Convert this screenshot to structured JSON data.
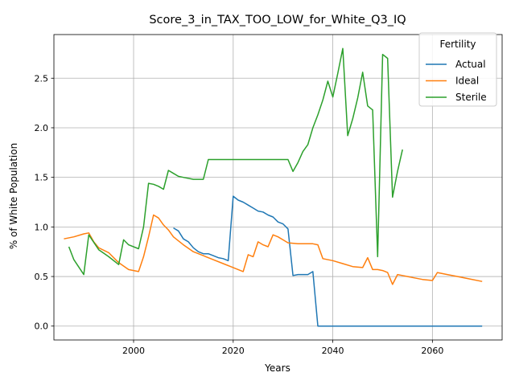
{
  "chart_data": {
    "type": "line",
    "title": "Score_3_in_TAX_TOO_LOW_for_White_Q3_IQ",
    "xlabel": "Years",
    "ylabel": "% of White Population",
    "xlim": [
      1984,
      2074
    ],
    "ylim": [
      -0.14,
      2.94
    ],
    "xticks": [
      2000,
      2020,
      2040,
      2060
    ],
    "yticks": [
      0.0,
      0.5,
      1.0,
      1.5,
      2.0,
      2.5
    ],
    "grid": true,
    "legend": {
      "title": "Fertility",
      "placement": "top-right"
    },
    "series": [
      {
        "name": "Actual",
        "color": "#1f77b4",
        "x": [
          2008,
          2009,
          2010,
          2011,
          2012,
          2013,
          2014,
          2015,
          2016,
          2017,
          2018,
          2019,
          2020,
          2021,
          2022,
          2023,
          2024,
          2025,
          2026,
          2027,
          2028,
          2029,
          2030,
          2031,
          2032,
          2033,
          2034,
          2035,
          2036,
          2037,
          2038,
          2040,
          2045,
          2050,
          2055,
          2060,
          2065,
          2070
        ],
        "values": [
          0.99,
          0.96,
          0.88,
          0.85,
          0.79,
          0.75,
          0.73,
          0.73,
          0.71,
          0.69,
          0.68,
          0.66,
          1.31,
          1.27,
          1.25,
          1.22,
          1.19,
          1.16,
          1.15,
          1.12,
          1.1,
          1.05,
          1.03,
          0.98,
          0.51,
          0.52,
          0.52,
          0.52,
          0.55,
          0.0,
          0.0,
          0.0,
          0.0,
          0.0,
          0.0,
          0.0,
          0.0,
          0.0
        ]
      },
      {
        "name": "Ideal",
        "color": "#ff7f0e",
        "x": [
          1986,
          1988,
          1990,
          1991,
          1992,
          1993,
          1995,
          1997,
          1999,
          2001,
          2002,
          2003,
          2004,
          2005,
          2006,
          2007,
          2008,
          2010,
          2012,
          2014,
          2016,
          2018,
          2020,
          2022,
          2023,
          2024,
          2025,
          2026,
          2027,
          2028,
          2029,
          2030,
          2031,
          2033,
          2035,
          2036,
          2037,
          2038,
          2040,
          2042,
          2044,
          2046,
          2047,
          2048,
          2049,
          2050,
          2051,
          2052,
          2053,
          2054,
          2056,
          2058,
          2060,
          2061,
          2063,
          2065,
          2067,
          2070
        ],
        "values": [
          0.88,
          0.9,
          0.93,
          0.94,
          0.85,
          0.79,
          0.74,
          0.64,
          0.57,
          0.55,
          0.7,
          0.9,
          1.12,
          1.09,
          1.02,
          0.97,
          0.9,
          0.82,
          0.75,
          0.71,
          0.67,
          0.63,
          0.59,
          0.55,
          0.72,
          0.7,
          0.85,
          0.82,
          0.8,
          0.92,
          0.9,
          0.87,
          0.84,
          0.83,
          0.83,
          0.83,
          0.82,
          0.68,
          0.66,
          0.63,
          0.6,
          0.59,
          0.69,
          0.57,
          0.57,
          0.56,
          0.54,
          0.42,
          0.52,
          0.51,
          0.49,
          0.47,
          0.46,
          0.54,
          0.52,
          0.5,
          0.48,
          0.45
        ]
      },
      {
        "name": "Sterile",
        "color": "#2ca02c",
        "x": [
          1987,
          1988,
          1990,
          1991,
          1993,
          1995,
          1997,
          1998,
          1999,
          2001,
          2002,
          2003,
          2004,
          2005,
          2006,
          2007,
          2008,
          2009,
          2010,
          2012,
          2013,
          2014,
          2015,
          2017,
          2019,
          2021,
          2023,
          2025,
          2027,
          2029,
          2031,
          2032,
          2033,
          2034,
          2035,
          2036,
          2037,
          2038,
          2039,
          2040,
          2041,
          2042,
          2043,
          2044,
          2045,
          2046,
          2047,
          2048,
          2049,
          2050,
          2051,
          2052,
          2053,
          2054
        ],
        "values": [
          0.8,
          0.67,
          0.52,
          0.92,
          0.77,
          0.7,
          0.62,
          0.87,
          0.82,
          0.78,
          1.0,
          1.44,
          1.43,
          1.41,
          1.38,
          1.57,
          1.54,
          1.51,
          1.5,
          1.48,
          1.48,
          1.48,
          1.68,
          1.68,
          1.68,
          1.68,
          1.68,
          1.68,
          1.68,
          1.68,
          1.68,
          1.56,
          1.65,
          1.76,
          1.83,
          2.0,
          2.13,
          2.28,
          2.47,
          2.31,
          2.55,
          2.8,
          1.92,
          2.09,
          2.3,
          2.56,
          2.22,
          2.18,
          0.7,
          2.74,
          2.7,
          1.3,
          1.56,
          1.78
        ]
      }
    ]
  }
}
